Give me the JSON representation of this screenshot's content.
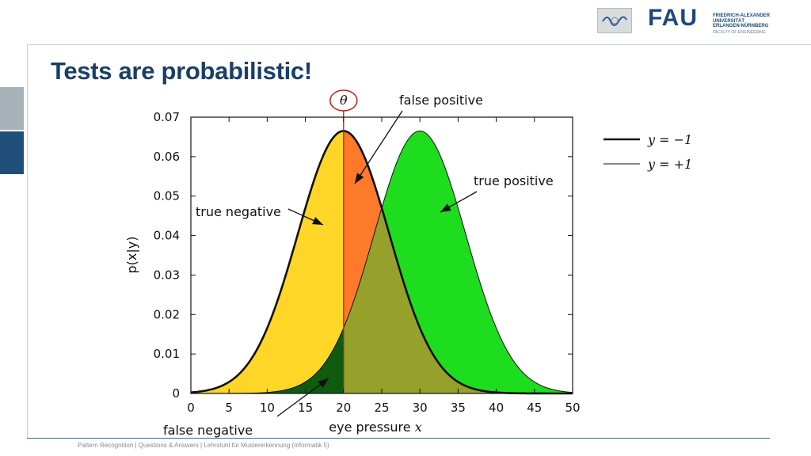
{
  "slide": {
    "title": "Tests are probabilistic!",
    "footer": "Pattern Recognition | Questions & Answers  |   Lehrstuhl für Mustererkennung (Informatik 5)"
  },
  "logos": {
    "fau_letters": "FAU",
    "fau_name": "FRIEDRICH-ALEXANDER\nUNIVERSITÄT\nERLANGEN-NÜRNBERG",
    "fau_faculty": "FACULTY OF ENGINEERING",
    "lab_icon": "lab-wave-icon"
  },
  "chart_data": {
    "type": "area",
    "xlabel": "eye pressure",
    "xlabel_var": "x",
    "ylabel": "p(x|y)",
    "xlim": [
      0,
      50
    ],
    "ylim": [
      0,
      0.07
    ],
    "x_ticks": [
      "0",
      "5",
      "10",
      "15",
      "20",
      "25",
      "30",
      "35",
      "40",
      "45",
      "50"
    ],
    "y_ticks": [
      "0",
      "0.01",
      "0.02",
      "0.03",
      "0.04",
      "0.05",
      "0.06",
      "0.07"
    ],
    "threshold": {
      "label": "θ",
      "x": 20
    },
    "series": [
      {
        "name": "y = −1",
        "distribution": "normal",
        "mean": 20,
        "std": 6,
        "peak": 0.0665,
        "line": "thick"
      },
      {
        "name": "y = +1",
        "distribution": "normal",
        "mean": 30,
        "std": 6,
        "peak": 0.0665,
        "line": "thin"
      }
    ],
    "regions": [
      {
        "label": "true negative",
        "color": "#fdd628"
      },
      {
        "label": "false positive",
        "color": "#fd7a2a"
      },
      {
        "label": "true positive",
        "color": "#1edc1e"
      },
      {
        "label": "false negative",
        "color": "#0f5b10"
      },
      {
        "label": "",
        "color": "#96a12c"
      }
    ],
    "legend_position": "right",
    "colors": {
      "threshold_line": "#c21b1b"
    }
  }
}
